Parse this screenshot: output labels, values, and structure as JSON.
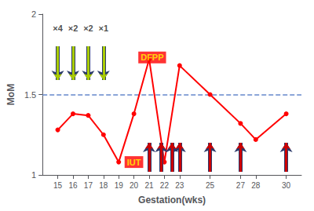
{
  "chart_data": {
    "type": "line",
    "x": [
      15,
      16,
      17,
      18,
      19,
      20,
      21,
      22,
      23,
      25,
      27,
      28,
      30
    ],
    "values": [
      1.28,
      1.38,
      1.37,
      1.25,
      1.08,
      1.38,
      1.72,
      1.08,
      1.68,
      1.5,
      1.32,
      1.22,
      1.38
    ],
    "color": "#FF0000",
    "marker": "circle",
    "line_style": "solid",
    "xlim": [
      14.0,
      31.0
    ],
    "ylim": [
      1.0,
      2.0
    ],
    "xticks": [
      15,
      16,
      17,
      18,
      19,
      20,
      21,
      22,
      23,
      25,
      27,
      28,
      30
    ],
    "yticks": [
      1,
      1.5,
      2
    ],
    "xlabel": "Gestation(wks)",
    "ylabel": "MoM",
    "grid": false,
    "reference_line": {
      "y": 1.5,
      "color": "#6688CC",
      "line_style": "dashed"
    },
    "arrows": [
      {
        "x": [
          15,
          16,
          17,
          18
        ],
        "from": 1.8,
        "to": 1.59,
        "color": "#AACC00",
        "labels": [
          "×4",
          "×2",
          "×2",
          "×1"
        ],
        "label_y": 1.88
      },
      {
        "x": [
          21,
          21.8,
          22.5,
          23,
          25,
          27,
          30
        ],
        "from": 1.02,
        "to": 1.2,
        "color": "#CC0000"
      }
    ],
    "annotations": [
      {
        "text": "DFPP",
        "x": 21.2,
        "y": 1.73
      },
      {
        "text": "IUT",
        "x": 20.0,
        "y": 1.08
      }
    ]
  }
}
